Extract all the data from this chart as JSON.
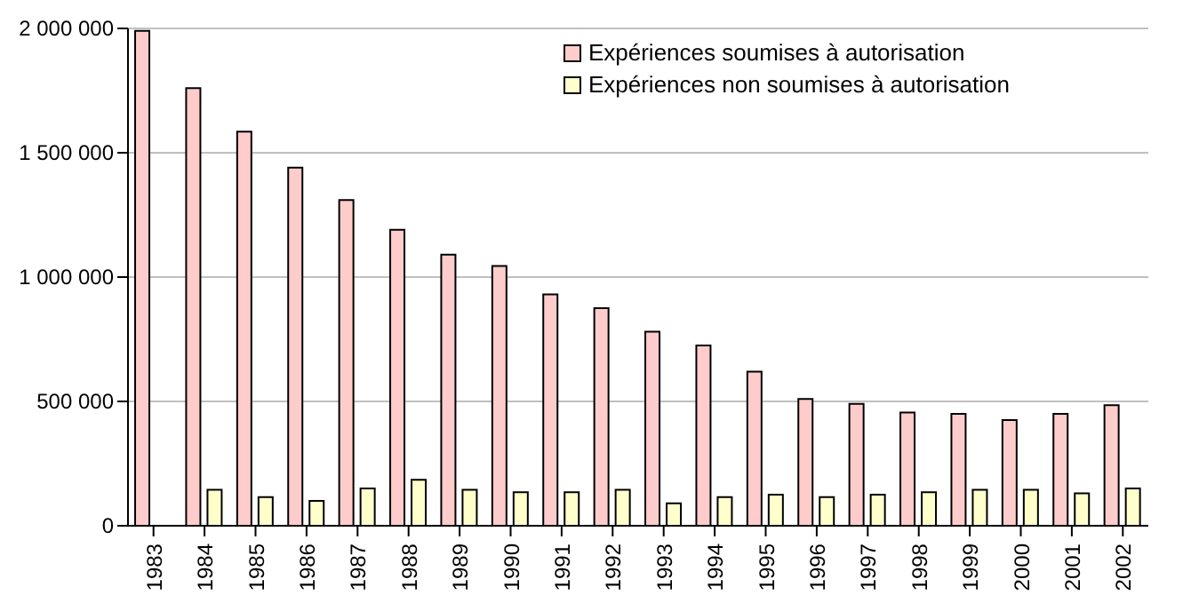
{
  "chart_data": {
    "type": "bar",
    "categories": [
      "1983",
      "1984",
      "1985",
      "1986",
      "1987",
      "1988",
      "1989",
      "1990",
      "1991",
      "1992",
      "1993",
      "1994",
      "1995",
      "1996",
      "1997",
      "1998",
      "1999",
      "2000",
      "2001",
      "2002"
    ],
    "series": [
      {
        "name": "Expériences soumises à autorisation",
        "color": "#ffcccc",
        "values": [
          1990000,
          1760000,
          1585000,
          1440000,
          1310000,
          1190000,
          1090000,
          1045000,
          930000,
          875000,
          780000,
          725000,
          620000,
          510000,
          490000,
          455000,
          450000,
          425000,
          450000,
          485000
        ]
      },
      {
        "name": "Expériences non soumises à autorisation",
        "color": "#ffffcc",
        "values": [
          null,
          145000,
          115000,
          100000,
          150000,
          185000,
          145000,
          135000,
          135000,
          145000,
          90000,
          115000,
          125000,
          115000,
          125000,
          135000,
          145000,
          145000,
          130000,
          150000
        ]
      }
    ],
    "ylim": [
      0,
      2000000
    ],
    "yticks": [
      {
        "value": 0,
        "label": "0"
      },
      {
        "value": 500000,
        "label": "500 000"
      },
      {
        "value": 1000000,
        "label": "1 000 000"
      },
      {
        "value": 1500000,
        "label": "1 500 000"
      },
      {
        "value": 2000000,
        "label": "2 000 000"
      }
    ],
    "grid": "y",
    "legend": "top right"
  }
}
